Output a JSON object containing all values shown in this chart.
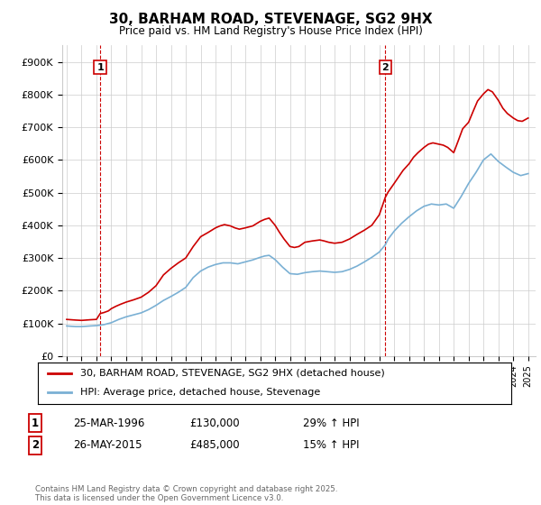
{
  "title": "30, BARHAM ROAD, STEVENAGE, SG2 9HX",
  "subtitle": "Price paid vs. HM Land Registry's House Price Index (HPI)",
  "ylim": [
    0,
    950000
  ],
  "yticks": [
    0,
    100000,
    200000,
    300000,
    400000,
    500000,
    600000,
    700000,
    800000,
    900000
  ],
  "ytick_labels": [
    "£0",
    "£100K",
    "£200K",
    "£300K",
    "£400K",
    "£500K",
    "£600K",
    "£700K",
    "£800K",
    "£900K"
  ],
  "price_color": "#cc0000",
  "hpi_color": "#7ab0d4",
  "annotation1_label": "1",
  "annotation2_label": "2",
  "legend_label1": "30, BARHAM ROAD, STEVENAGE, SG2 9HX (detached house)",
  "legend_label2": "HPI: Average price, detached house, Stevenage",
  "footer": "Contains HM Land Registry data © Crown copyright and database right 2025.\nThis data is licensed under the Open Government Licence v3.0.",
  "table_rows": [
    {
      "num": "1",
      "date": "25-MAR-1996",
      "price": "£130,000",
      "hpi": "29% ↑ HPI"
    },
    {
      "num": "2",
      "date": "26-MAY-2015",
      "price": "£485,000",
      "hpi": "15% ↑ HPI"
    }
  ],
  "price_data_x": [
    1994.0,
    1994.3,
    1994.6,
    1995.0,
    1995.3,
    1995.6,
    1996.0,
    1996.25,
    1996.5,
    1996.8,
    1997.0,
    1997.3,
    1997.6,
    1998.0,
    1998.5,
    1999.0,
    1999.5,
    2000.0,
    2000.5,
    2001.0,
    2001.5,
    2002.0,
    2002.5,
    2003.0,
    2003.5,
    2004.0,
    2004.3,
    2004.6,
    2005.0,
    2005.3,
    2005.6,
    2006.0,
    2006.5,
    2007.0,
    2007.3,
    2007.6,
    2008.0,
    2008.3,
    2008.6,
    2009.0,
    2009.3,
    2009.6,
    2010.0,
    2010.5,
    2011.0,
    2011.3,
    2011.6,
    2012.0,
    2012.5,
    2013.0,
    2013.5,
    2014.0,
    2014.5,
    2015.0,
    2015.4,
    2015.6,
    2016.0,
    2016.3,
    2016.6,
    2017.0,
    2017.3,
    2017.6,
    2018.0,
    2018.3,
    2018.6,
    2019.0,
    2019.3,
    2019.6,
    2020.0,
    2020.3,
    2020.6,
    2021.0,
    2021.3,
    2021.6,
    2022.0,
    2022.3,
    2022.6,
    2023.0,
    2023.3,
    2023.6,
    2024.0,
    2024.3,
    2024.6,
    2025.0
  ],
  "price_data_y": [
    112000,
    111000,
    110000,
    109000,
    110000,
    111000,
    112000,
    130000,
    133000,
    138000,
    145000,
    152000,
    158000,
    165000,
    172000,
    180000,
    195000,
    215000,
    248000,
    268000,
    285000,
    300000,
    335000,
    365000,
    378000,
    392000,
    398000,
    402000,
    398000,
    392000,
    388000,
    392000,
    398000,
    412000,
    418000,
    422000,
    400000,
    378000,
    358000,
    335000,
    332000,
    335000,
    348000,
    352000,
    355000,
    352000,
    348000,
    345000,
    348000,
    358000,
    372000,
    385000,
    400000,
    432000,
    485000,
    502000,
    528000,
    548000,
    568000,
    588000,
    608000,
    622000,
    638000,
    648000,
    652000,
    648000,
    645000,
    638000,
    622000,
    658000,
    695000,
    715000,
    748000,
    780000,
    802000,
    815000,
    808000,
    782000,
    758000,
    742000,
    728000,
    720000,
    718000,
    728000
  ],
  "hpi_data_x": [
    1994.0,
    1994.3,
    1994.6,
    1995.0,
    1995.3,
    1995.6,
    1996.0,
    1996.5,
    1997.0,
    1997.5,
    1998.0,
    1998.5,
    1999.0,
    1999.5,
    2000.0,
    2000.5,
    2001.0,
    2001.5,
    2002.0,
    2002.5,
    2003.0,
    2003.5,
    2004.0,
    2004.5,
    2005.0,
    2005.5,
    2006.0,
    2006.5,
    2007.0,
    2007.3,
    2007.6,
    2008.0,
    2008.5,
    2009.0,
    2009.5,
    2010.0,
    2010.5,
    2011.0,
    2011.5,
    2012.0,
    2012.5,
    2013.0,
    2013.5,
    2014.0,
    2014.5,
    2015.0,
    2015.4,
    2015.6,
    2016.0,
    2016.5,
    2017.0,
    2017.5,
    2018.0,
    2018.5,
    2019.0,
    2019.5,
    2020.0,
    2020.5,
    2021.0,
    2021.5,
    2022.0,
    2022.5,
    2023.0,
    2023.5,
    2024.0,
    2024.5,
    2025.0
  ],
  "hpi_data_y": [
    92000,
    91000,
    90000,
    90000,
    91000,
    92000,
    93000,
    96000,
    102000,
    112000,
    120000,
    126000,
    132000,
    142000,
    155000,
    170000,
    182000,
    195000,
    210000,
    240000,
    260000,
    272000,
    280000,
    285000,
    285000,
    282000,
    288000,
    294000,
    302000,
    306000,
    308000,
    295000,
    272000,
    252000,
    250000,
    255000,
    258000,
    260000,
    258000,
    256000,
    258000,
    265000,
    275000,
    288000,
    302000,
    318000,
    340000,
    358000,
    382000,
    406000,
    426000,
    444000,
    458000,
    465000,
    462000,
    465000,
    452000,
    488000,
    528000,
    562000,
    600000,
    618000,
    595000,
    578000,
    562000,
    552000,
    558000
  ],
  "vline1_x": 1996.25,
  "vline2_x": 2015.4,
  "xlim_left": 1993.7,
  "xlim_right": 2025.5,
  "background_color": "#ffffff",
  "grid_color": "#cccccc",
  "hatch_edgecolor": "#c8c8c8"
}
